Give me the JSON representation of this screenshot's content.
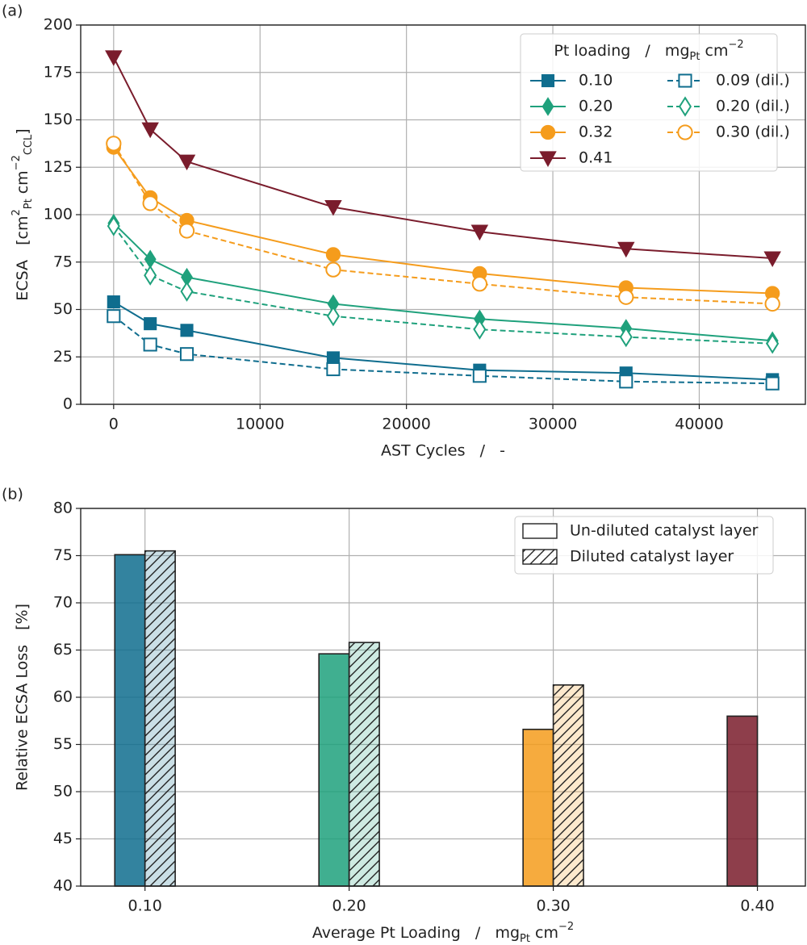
{
  "chart_data": [
    {
      "type": "line",
      "panel_label": "(a)",
      "xlabel": "AST Cycles   /   -",
      "ylabel": [
        {
          "text": "ECSA   [cm"
        },
        {
          "text": "2",
          "shift": "super"
        },
        {
          "text": "Pt",
          "shift": "sub"
        },
        {
          "text": " cm"
        },
        {
          "text": "−2",
          "shift": "super"
        },
        {
          "text": "CCL",
          "shift": "sub"
        },
        {
          "text": "]"
        }
      ],
      "xlim": [
        -2250,
        47250
      ],
      "ylim": [
        0,
        200
      ],
      "xticks": [
        0,
        10000,
        20000,
        30000,
        40000
      ],
      "yticks": [
        0,
        25,
        50,
        75,
        100,
        125,
        150,
        175,
        200
      ],
      "grid": true,
      "legend": {
        "loc": "upper right",
        "title": [
          {
            "text": "Pt loading   /   mg"
          },
          {
            "text": "Pt",
            "shift": "sub"
          },
          {
            "text": " cm"
          },
          {
            "text": "−2",
            "shift": "super"
          }
        ]
      },
      "x": [
        0,
        2500,
        5000,
        15000,
        25000,
        35000,
        45000
      ],
      "series": [
        {
          "name": "0.10",
          "color": "#0f6d8e",
          "marker": "square",
          "filled": true,
          "dashed": false,
          "values": [
            54,
            42.5,
            39,
            24.5,
            18,
            16.5,
            13
          ]
        },
        {
          "name": "0.20",
          "color": "#1fa17c",
          "marker": "diamond",
          "filled": true,
          "dashed": false,
          "values": [
            95.5,
            76.5,
            67,
            53,
            45,
            40,
            33.5
          ]
        },
        {
          "name": "0.32",
          "color": "#f59c1c",
          "marker": "circle",
          "filled": true,
          "dashed": false,
          "values": [
            135.5,
            109,
            97,
            79,
            69,
            61.5,
            58.5
          ]
        },
        {
          "name": "0.41",
          "color": "#7a1c2c",
          "marker": "triangle-down",
          "filled": true,
          "dashed": false,
          "values": [
            183,
            145,
            128,
            104,
            91,
            82,
            77
          ]
        },
        {
          "name": "0.09 (dil.)",
          "color": "#0f6d8e",
          "marker": "square",
          "filled": false,
          "dashed": true,
          "values": [
            46.5,
            31.5,
            26.5,
            18.5,
            15,
            12,
            11
          ]
        },
        {
          "name": "0.20 (dil.)",
          "color": "#1fa17c",
          "marker": "diamond",
          "filled": false,
          "dashed": true,
          "values": [
            94,
            68,
            59.5,
            46.5,
            39.5,
            35.5,
            32
          ]
        },
        {
          "name": "0.30 (dil.)",
          "color": "#f59c1c",
          "marker": "circle",
          "filled": false,
          "dashed": true,
          "values": [
            137.5,
            106,
            91.5,
            71,
            63.5,
            56.5,
            53
          ]
        }
      ]
    },
    {
      "type": "bar",
      "panel_label": "(b)",
      "xlabel": [
        {
          "text": "Average Pt Loading   /   mg"
        },
        {
          "text": "Pt",
          "shift": "sub"
        },
        {
          "text": " cm"
        },
        {
          "text": "−2",
          "shift": "super"
        }
      ],
      "ylabel": "Relative ECSA Loss   [%]",
      "xlim": [
        0.0685,
        0.4235
      ],
      "ylim": [
        40,
        80
      ],
      "xticks": [
        {
          "value": 0.1,
          "label": "0.10"
        },
        {
          "value": 0.2,
          "label": "0.20"
        },
        {
          "value": 0.3,
          "label": "0.30"
        },
        {
          "value": 0.4,
          "label": "0.40"
        }
      ],
      "yticks": [
        40,
        45,
        50,
        55,
        60,
        65,
        70,
        75,
        80
      ],
      "grid": true,
      "legend": {
        "loc": "upper right"
      },
      "x": [
        0.1,
        0.2,
        0.3,
        0.4
      ],
      "colors": [
        "#0f6d8e",
        "#1fa17c",
        "#f59c1c",
        "#7a1c2c"
      ],
      "series": [
        {
          "name": "Un-diluted catalyst layer",
          "hatch": false,
          "values": [
            75.1,
            64.6,
            56.6,
            58.0
          ]
        },
        {
          "name": "Diluted catalyst layer",
          "hatch": true,
          "values": [
            75.5,
            65.8,
            61.3,
            null
          ]
        }
      ]
    }
  ]
}
